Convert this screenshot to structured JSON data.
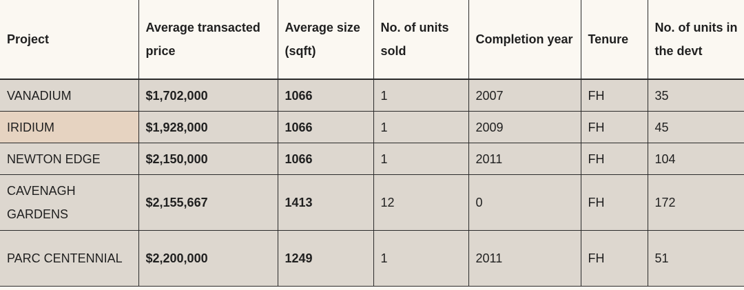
{
  "headers": [
    "Project",
    "Average transacted price",
    "Average size (sqft)",
    "No. of units sold",
    "Completion year",
    "Tenure",
    "No. of units in the devt"
  ],
  "rows": [
    {
      "project": "VANADIUM",
      "price": "$1,702,000",
      "size": "1066",
      "sold": "1",
      "year": "2007",
      "tenure": "FH",
      "units": "35"
    },
    {
      "project": "IRIDIUM",
      "price": "$1,928,000",
      "size": "1066",
      "sold": "1",
      "year": "2009",
      "tenure": "FH",
      "units": "45"
    },
    {
      "project": "NEWTON EDGE",
      "price": "$2,150,000",
      "size": "1066",
      "sold": "1",
      "year": "2011",
      "tenure": "FH",
      "units": "104"
    },
    {
      "project": "CAVENAGH GARDENS",
      "price": "$2,155,667",
      "size": "1413",
      "sold": "12",
      "year": "0",
      "tenure": "FH",
      "units": "172"
    },
    {
      "project": "PARC CENTENNIAL",
      "price": "$2,200,000",
      "size": "1249",
      "sold": "1",
      "year": "2011",
      "tenure": "FH",
      "units": "51"
    }
  ],
  "colors": {
    "header_bg": "#fbf8f2",
    "row_bg": "#ddd7cf",
    "highlight_cell_bg": "#e6d3c1",
    "border": "#2a2a2a"
  }
}
